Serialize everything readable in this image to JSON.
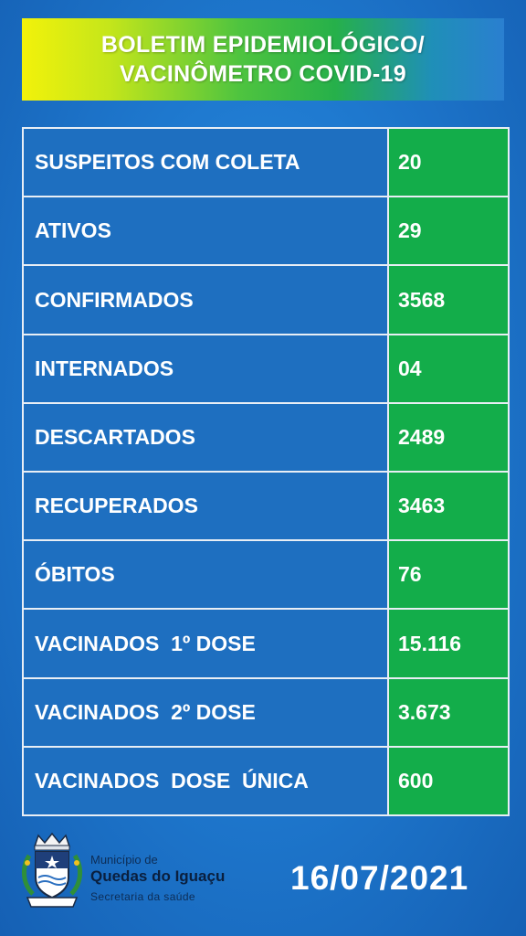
{
  "header": {
    "line1": "BOLETIM EPIDEMIOLÓGICO/",
    "line2": "VACINÔMETRO COVID-19"
  },
  "rows": [
    {
      "label": "SUSPEITOS COM COLETA",
      "value": "20"
    },
    {
      "label": "ATIVOS",
      "value": "29"
    },
    {
      "label": "CONFIRMADOS",
      "value": "3568"
    },
    {
      "label": "INTERNADOS",
      "value": "04"
    },
    {
      "label": "DESCARTADOS",
      "value": "2489"
    },
    {
      "label": "RECUPERADOS",
      "value": "3463"
    },
    {
      "label": "ÓBITOS",
      "value": "76"
    },
    {
      "label": "VACINADOS  1º DOSE",
      "value": "15.116"
    },
    {
      "label": "VACINADOS  2º DOSE",
      "value": "3.673"
    },
    {
      "label": "VACINADOS  DOSE  ÚNICA",
      "value": "600"
    }
  ],
  "footer": {
    "org_line1": "Município de",
    "org_line2": "Quedas do Iguaçu",
    "org_line3": "Secretaria da saúde",
    "date": "16/07/2021",
    "logo_icon": "municipal-coat-of-arms-icon"
  },
  "colors": {
    "label_bg": "#1e6fc0",
    "value_bg": "#13ad4a",
    "background": "#1f7ad0"
  }
}
